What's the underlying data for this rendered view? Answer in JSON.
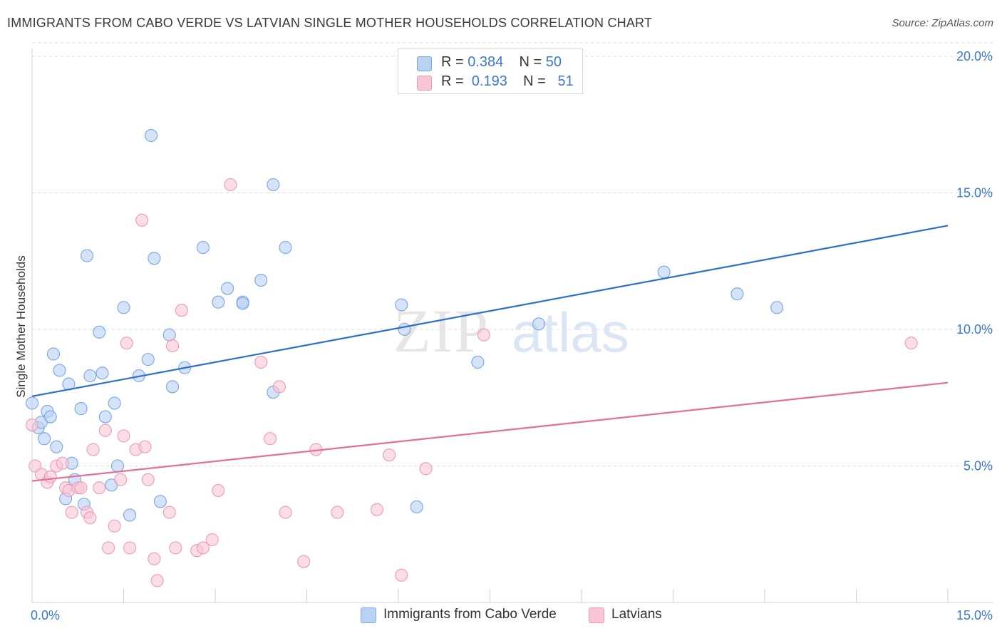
{
  "title": "IMMIGRANTS FROM CABO VERDE VS LATVIAN SINGLE MOTHER HOUSEHOLDS CORRELATION CHART",
  "source": "Source: ZipAtlas.com",
  "watermark": {
    "part1": "ZIP",
    "part2": "atlas"
  },
  "legend": {
    "rows": [
      {
        "r_label": "R =",
        "r_value": "0.384",
        "n_label": "N =",
        "n_value": "50"
      },
      {
        "r_label": "R =",
        "r_value": "0.193",
        "n_label": "N =",
        "n_value": "51"
      }
    ]
  },
  "bottom_legend": {
    "series1": "Immigrants from Cabo Verde",
    "series2": "Latvians"
  },
  "colors": {
    "blue_fill": "#b9d1f3",
    "blue_stroke": "#7aa6e2",
    "blue_line": "#2d6fcc",
    "pink_fill": "#f9c6d6",
    "pink_stroke": "#ee9ab7",
    "pink_line": "#e56e9b",
    "tick_label": "#3b78d0",
    "grid": "#dcdcdc"
  },
  "chart_data": {
    "type": "scatter",
    "title": "IMMIGRANTS FROM CABO VERDE VS LATVIAN SINGLE MOTHER HOUSEHOLDS CORRELATION CHART",
    "xlabel": "",
    "ylabel": "Single Mother Households",
    "xlim": [
      0,
      15
    ],
    "ylim": [
      0,
      20.5
    ],
    "x_tick_labels": [
      "0.0%",
      "15.0%"
    ],
    "y_ticks": [
      5,
      10,
      15,
      20
    ],
    "y_tick_labels": [
      "5.0%",
      "10.0%",
      "15.0%",
      "20.0%"
    ],
    "grid": true,
    "legend_position": "top-center",
    "series": [
      {
        "name": "Immigrants from Cabo Verde",
        "color": "#b9d1f3",
        "trend": {
          "x": [
            0,
            15
          ],
          "y": [
            7.55,
            13.8
          ]
        },
        "points": [
          [
            0.0,
            7.3
          ],
          [
            0.1,
            6.4
          ],
          [
            0.15,
            6.6
          ],
          [
            0.2,
            6.0
          ],
          [
            0.25,
            7.0
          ],
          [
            0.3,
            6.8
          ],
          [
            0.35,
            9.1
          ],
          [
            0.4,
            5.7
          ],
          [
            0.45,
            8.5
          ],
          [
            0.55,
            3.8
          ],
          [
            0.6,
            8.0
          ],
          [
            0.65,
            5.1
          ],
          [
            0.7,
            4.5
          ],
          [
            0.8,
            7.1
          ],
          [
            0.85,
            3.6
          ],
          [
            0.9,
            12.7
          ],
          [
            0.95,
            8.3
          ],
          [
            1.1,
            9.9
          ],
          [
            1.15,
            8.4
          ],
          [
            1.2,
            6.8
          ],
          [
            1.3,
            4.3
          ],
          [
            1.35,
            7.3
          ],
          [
            1.4,
            5.0
          ],
          [
            1.5,
            10.8
          ],
          [
            1.6,
            3.2
          ],
          [
            1.75,
            8.3
          ],
          [
            1.9,
            8.9
          ],
          [
            1.95,
            17.1
          ],
          [
            2.0,
            12.6
          ],
          [
            2.1,
            3.7
          ],
          [
            2.25,
            9.8
          ],
          [
            2.3,
            7.9
          ],
          [
            2.5,
            8.6
          ],
          [
            2.8,
            13.0
          ],
          [
            3.05,
            11.0
          ],
          [
            3.2,
            11.5
          ],
          [
            3.45,
            11.0
          ],
          [
            3.45,
            10.95
          ],
          [
            3.75,
            11.8
          ],
          [
            3.95,
            15.3
          ],
          [
            3.95,
            7.7
          ],
          [
            4.15,
            13.0
          ],
          [
            6.05,
            10.9
          ],
          [
            6.1,
            10.0
          ],
          [
            6.3,
            3.5
          ],
          [
            7.3,
            8.8
          ],
          [
            8.3,
            10.2
          ],
          [
            10.35,
            12.1
          ],
          [
            11.55,
            11.3
          ],
          [
            12.2,
            10.8
          ]
        ]
      },
      {
        "name": "Latvians",
        "color": "#f9c6d6",
        "trend": {
          "x": [
            0,
            15
          ],
          "y": [
            4.45,
            8.05
          ]
        },
        "points": [
          [
            0.0,
            6.5
          ],
          [
            0.05,
            5.0
          ],
          [
            0.15,
            4.7
          ],
          [
            0.25,
            4.4
          ],
          [
            0.3,
            4.6
          ],
          [
            0.4,
            5.0
          ],
          [
            0.5,
            5.1
          ],
          [
            0.55,
            4.2
          ],
          [
            0.6,
            4.1
          ],
          [
            0.65,
            3.3
          ],
          [
            0.75,
            4.2
          ],
          [
            0.8,
            4.2
          ],
          [
            0.9,
            3.3
          ],
          [
            0.95,
            3.1
          ],
          [
            1.0,
            5.6
          ],
          [
            1.1,
            4.2
          ],
          [
            1.2,
            6.3
          ],
          [
            1.25,
            2.0
          ],
          [
            1.35,
            2.8
          ],
          [
            1.45,
            4.5
          ],
          [
            1.5,
            6.1
          ],
          [
            1.55,
            9.5
          ],
          [
            1.6,
            2.0
          ],
          [
            1.7,
            5.6
          ],
          [
            1.8,
            14.0
          ],
          [
            1.85,
            5.7
          ],
          [
            1.9,
            4.5
          ],
          [
            2.0,
            1.6
          ],
          [
            2.05,
            0.8
          ],
          [
            2.25,
            3.3
          ],
          [
            2.3,
            9.4
          ],
          [
            2.35,
            2.0
          ],
          [
            2.45,
            10.7
          ],
          [
            2.7,
            1.9
          ],
          [
            2.8,
            2.0
          ],
          [
            2.95,
            2.3
          ],
          [
            3.05,
            4.1
          ],
          [
            3.25,
            15.3
          ],
          [
            3.75,
            8.8
          ],
          [
            3.9,
            6.0
          ],
          [
            4.05,
            7.9
          ],
          [
            4.15,
            3.3
          ],
          [
            4.45,
            1.5
          ],
          [
            4.65,
            5.6
          ],
          [
            5.0,
            3.3
          ],
          [
            5.65,
            3.4
          ],
          [
            5.85,
            5.4
          ],
          [
            6.05,
            1.0
          ],
          [
            6.45,
            4.9
          ],
          [
            7.4,
            9.8
          ],
          [
            14.4,
            9.5
          ]
        ]
      }
    ]
  },
  "bottom_x_tick_left": "0.0%",
  "bottom_x_tick_right": "15.0%"
}
